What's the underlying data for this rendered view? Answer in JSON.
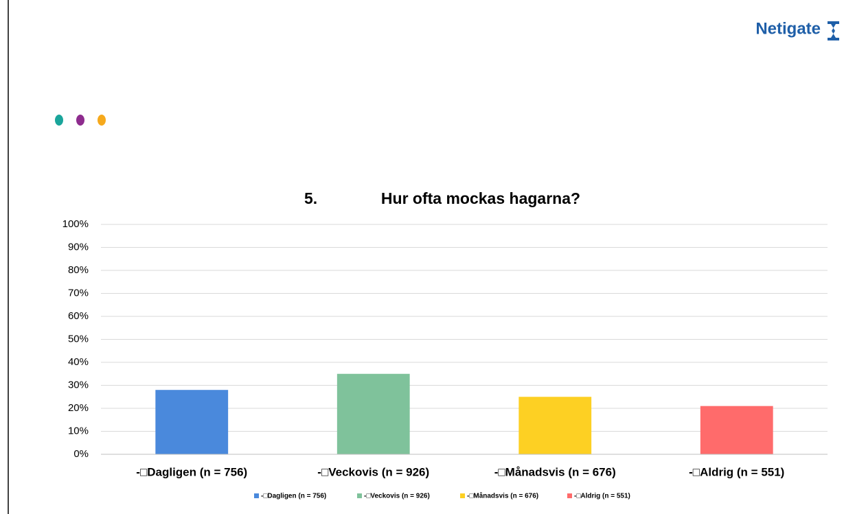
{
  "logo": "Netigate",
  "chart_data": {
    "type": "bar",
    "title_number": "5.",
    "title": "Hur ofta mockas hagarna?",
    "categories": [
      "-□Dagligen (n = 756)",
      "-□Veckovis (n = 926)",
      "-□Månadsvis (n = 676)",
      "-□Aldrig (n = 551)"
    ],
    "values": [
      28,
      35,
      25,
      21
    ],
    "colors": [
      "#4a89dc",
      "#7fc29b",
      "#fdd023",
      "#ff6b6b"
    ],
    "ylim": [
      0,
      100
    ],
    "yticks": [
      {
        "value": 0,
        "label": "0%"
      },
      {
        "value": 10,
        "label": "10%"
      },
      {
        "value": 20,
        "label": "20%"
      },
      {
        "value": 30,
        "label": "30%"
      },
      {
        "value": 40,
        "label": "40%"
      },
      {
        "value": 50,
        "label": "50%"
      },
      {
        "value": 60,
        "label": "60%"
      },
      {
        "value": 70,
        "label": "70%"
      },
      {
        "value": 80,
        "label": "80%"
      },
      {
        "value": 90,
        "label": "90%"
      },
      {
        "value": 100,
        "label": "100%"
      }
    ],
    "grid": true,
    "legend": "bottom"
  }
}
